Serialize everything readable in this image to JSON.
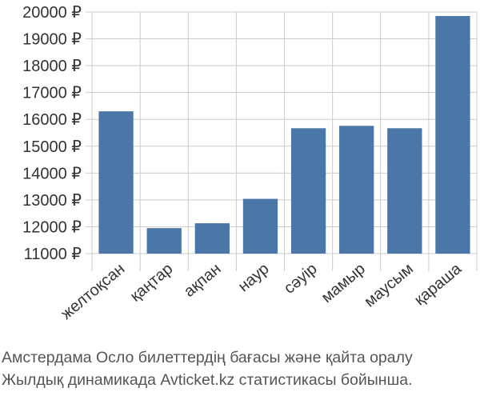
{
  "chart_data": {
    "type": "bar",
    "categories": [
      "желтоқсан",
      "қаңтар",
      "ақпан",
      "наур",
      "сәуір",
      "мамыр",
      "маусым",
      "қараша"
    ],
    "values": [
      16300,
      11950,
      12130,
      13040,
      15670,
      15760,
      15670,
      19850
    ],
    "ylim": [
      11000,
      20000
    ],
    "yticks": [
      11000,
      12000,
      13000,
      14000,
      15000,
      16000,
      17000,
      18000,
      19000,
      20000
    ],
    "ytick_labels": [
      "11000 ₽",
      "12000 ₽",
      "13000 ₽",
      "14000 ₽",
      "15000 ₽",
      "16000 ₽",
      "17000 ₽",
      "18000 ₽",
      "19000 ₽",
      "20000 ₽"
    ],
    "grid": true,
    "bar_color": "#4a76a8",
    "grid_color": "#cccccc"
  },
  "caption": {
    "line1": "Амстердама Осло билеттердің бағасы және қайта оралу",
    "line2": "Жылдық динамикада Avticket.kz статистикасы бойынша."
  }
}
